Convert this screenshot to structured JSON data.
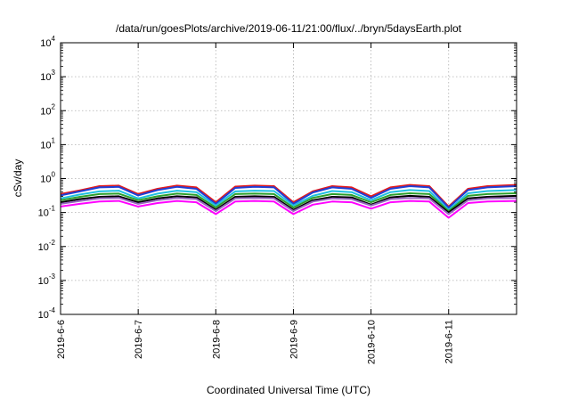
{
  "chart_data": {
    "type": "line",
    "title": "/data/run/goesPlots/archive/2019-06-11/21:00/flux/../bryn/5daysEarth.plot",
    "xlabel": "Coordinated Universal Time (UTC)",
    "ylabel": "cSv/day",
    "yscale": "log",
    "ylim": [
      0.0001,
      10000
    ],
    "xlim": [
      "2019-06-06 00:00",
      "2019-06-11 21:00"
    ],
    "x_tick_labels": [
      "2019-6-6",
      "2019-6-7",
      "2019-6-8",
      "2019-6-9",
      "2019-6-10",
      "2019-6-11"
    ],
    "y_ticks": [
      {
        "value": 0.0001,
        "base": "10",
        "exp": "-4"
      },
      {
        "value": 0.001,
        "base": "10",
        "exp": "-3"
      },
      {
        "value": 0.01,
        "base": "10",
        "exp": "-2"
      },
      {
        "value": 0.1,
        "base": "10",
        "exp": "-1"
      },
      {
        "value": 1,
        "base": "10",
        "exp": "0"
      },
      {
        "value": 10,
        "base": "10",
        "exp": "1"
      },
      {
        "value": 100,
        "base": "10",
        "exp": "2"
      },
      {
        "value": 1000,
        "base": "10",
        "exp": "3"
      },
      {
        "value": 10000,
        "base": "10",
        "exp": "4"
      }
    ],
    "grid": true,
    "x_days": [
      0,
      0.25,
      0.5,
      0.75,
      1,
      1.25,
      1.5,
      1.75,
      2,
      2.25,
      2.5,
      2.75,
      3,
      3.25,
      3.5,
      3.75,
      4,
      4.25,
      4.5,
      4.75,
      5,
      5.25,
      5.5,
      5.875
    ],
    "series": [
      {
        "color": "#e41a1c",
        "values": [
          0.35,
          0.45,
          0.6,
          0.62,
          0.35,
          0.5,
          0.62,
          0.55,
          0.2,
          0.58,
          0.62,
          0.6,
          0.2,
          0.42,
          0.6,
          0.55,
          0.3,
          0.55,
          0.65,
          0.6,
          0.15,
          0.5,
          0.6,
          0.65
        ]
      },
      {
        "color": "#1f3fd6",
        "values": [
          0.32,
          0.42,
          0.55,
          0.57,
          0.32,
          0.46,
          0.57,
          0.5,
          0.18,
          0.53,
          0.57,
          0.55,
          0.18,
          0.39,
          0.55,
          0.5,
          0.27,
          0.5,
          0.6,
          0.55,
          0.14,
          0.46,
          0.55,
          0.6
        ]
      },
      {
        "color": "#1fbfe0",
        "values": [
          0.26,
          0.34,
          0.42,
          0.44,
          0.26,
          0.36,
          0.44,
          0.4,
          0.16,
          0.42,
          0.44,
          0.43,
          0.16,
          0.31,
          0.43,
          0.4,
          0.23,
          0.4,
          0.46,
          0.43,
          0.12,
          0.37,
          0.43,
          0.46
        ]
      },
      {
        "color": "#2ca02c",
        "values": [
          0.23,
          0.29,
          0.35,
          0.36,
          0.23,
          0.3,
          0.36,
          0.33,
          0.14,
          0.35,
          0.36,
          0.35,
          0.14,
          0.27,
          0.35,
          0.33,
          0.2,
          0.33,
          0.37,
          0.35,
          0.11,
          0.31,
          0.35,
          0.37
        ]
      },
      {
        "color": "#000000",
        "values": [
          0.2,
          0.25,
          0.29,
          0.3,
          0.2,
          0.26,
          0.3,
          0.28,
          0.12,
          0.29,
          0.3,
          0.29,
          0.12,
          0.23,
          0.29,
          0.28,
          0.17,
          0.28,
          0.31,
          0.29,
          0.1,
          0.26,
          0.29,
          0.31
        ]
      },
      {
        "color": "#9467bd",
        "values": [
          0.18,
          0.22,
          0.26,
          0.27,
          0.18,
          0.23,
          0.27,
          0.25,
          0.11,
          0.26,
          0.27,
          0.26,
          0.11,
          0.21,
          0.26,
          0.25,
          0.16,
          0.25,
          0.27,
          0.26,
          0.09,
          0.23,
          0.26,
          0.27
        ]
      },
      {
        "color": "#ff00ff",
        "values": [
          0.15,
          0.18,
          0.21,
          0.22,
          0.15,
          0.19,
          0.22,
          0.2,
          0.09,
          0.21,
          0.22,
          0.21,
          0.09,
          0.17,
          0.21,
          0.2,
          0.13,
          0.2,
          0.22,
          0.21,
          0.07,
          0.19,
          0.21,
          0.22
        ]
      }
    ]
  }
}
